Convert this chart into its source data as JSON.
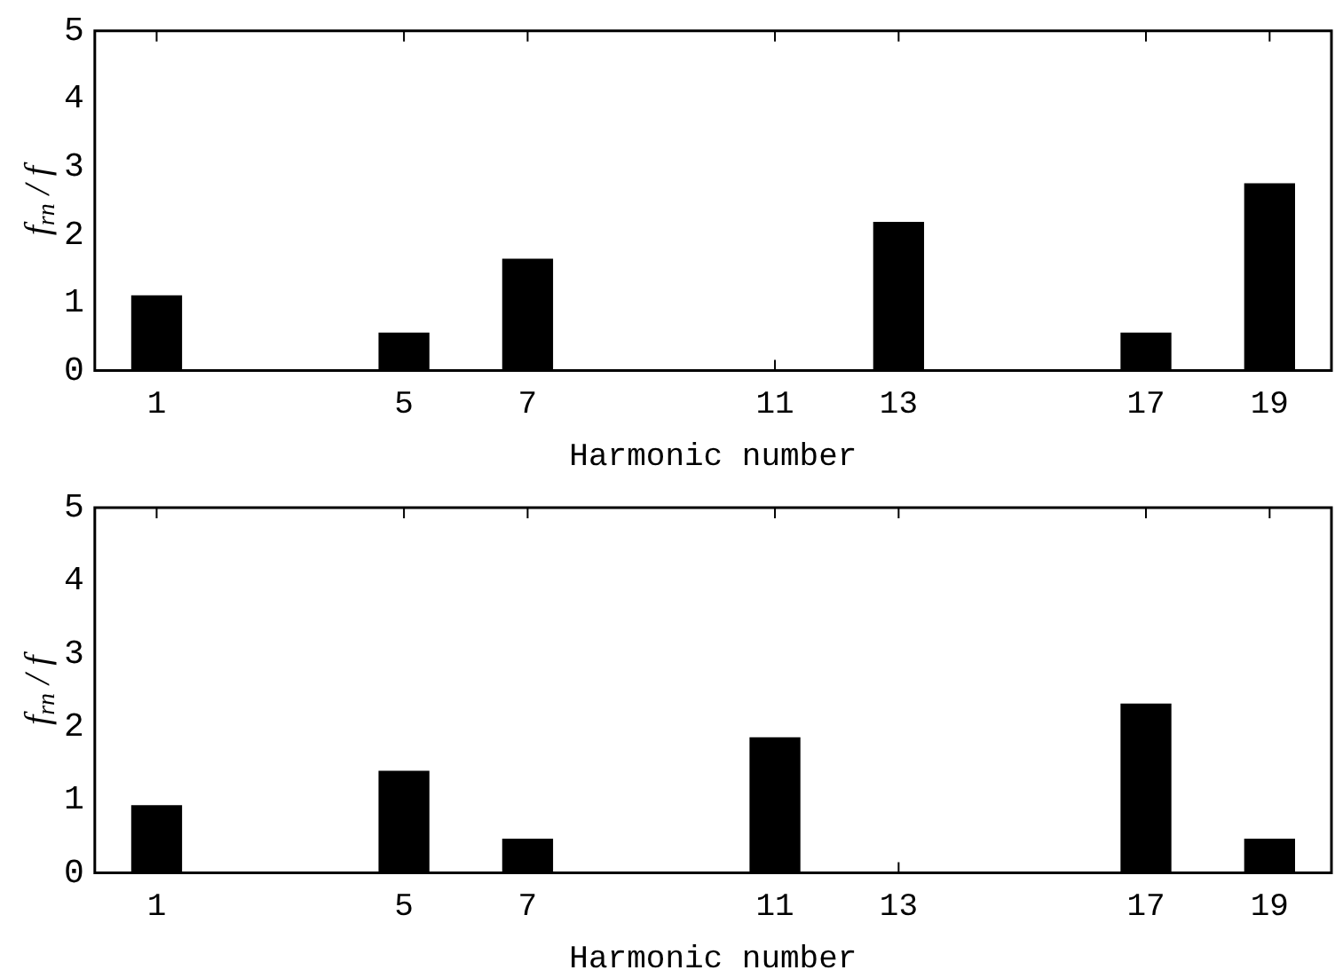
{
  "chart_data": [
    {
      "type": "bar",
      "xlabel": "Harmonic number",
      "ylabel": "f$_{rn}$ / f",
      "x": [
        1,
        5,
        7,
        13,
        17,
        19
      ],
      "values": [
        1.1,
        0.55,
        1.64,
        2.18,
        0.55,
        2.75
      ],
      "color": "#000000",
      "xlim": [
        0,
        20
      ],
      "xticks": [
        1,
        5,
        7,
        11,
        13,
        17,
        19
      ],
      "ylim": [
        0,
        5
      ],
      "yticks": [
        0,
        1,
        2,
        3,
        4,
        5
      ],
      "grid": false,
      "legend": false
    },
    {
      "type": "bar",
      "xlabel": "Harmonic number",
      "ylabel": "f$_{rn}$ / f",
      "x": [
        1,
        5,
        7,
        11,
        17,
        19
      ],
      "values": [
        0.92,
        1.39,
        0.46,
        1.85,
        2.31,
        0.46
      ],
      "color": "#000000",
      "xlim": [
        0,
        20
      ],
      "xticks": [
        1,
        5,
        7,
        11,
        13,
        17,
        19
      ],
      "ylim": [
        0,
        5
      ],
      "yticks": [
        0,
        1,
        2,
        3,
        4,
        5
      ],
      "grid": false,
      "legend": false
    }
  ]
}
